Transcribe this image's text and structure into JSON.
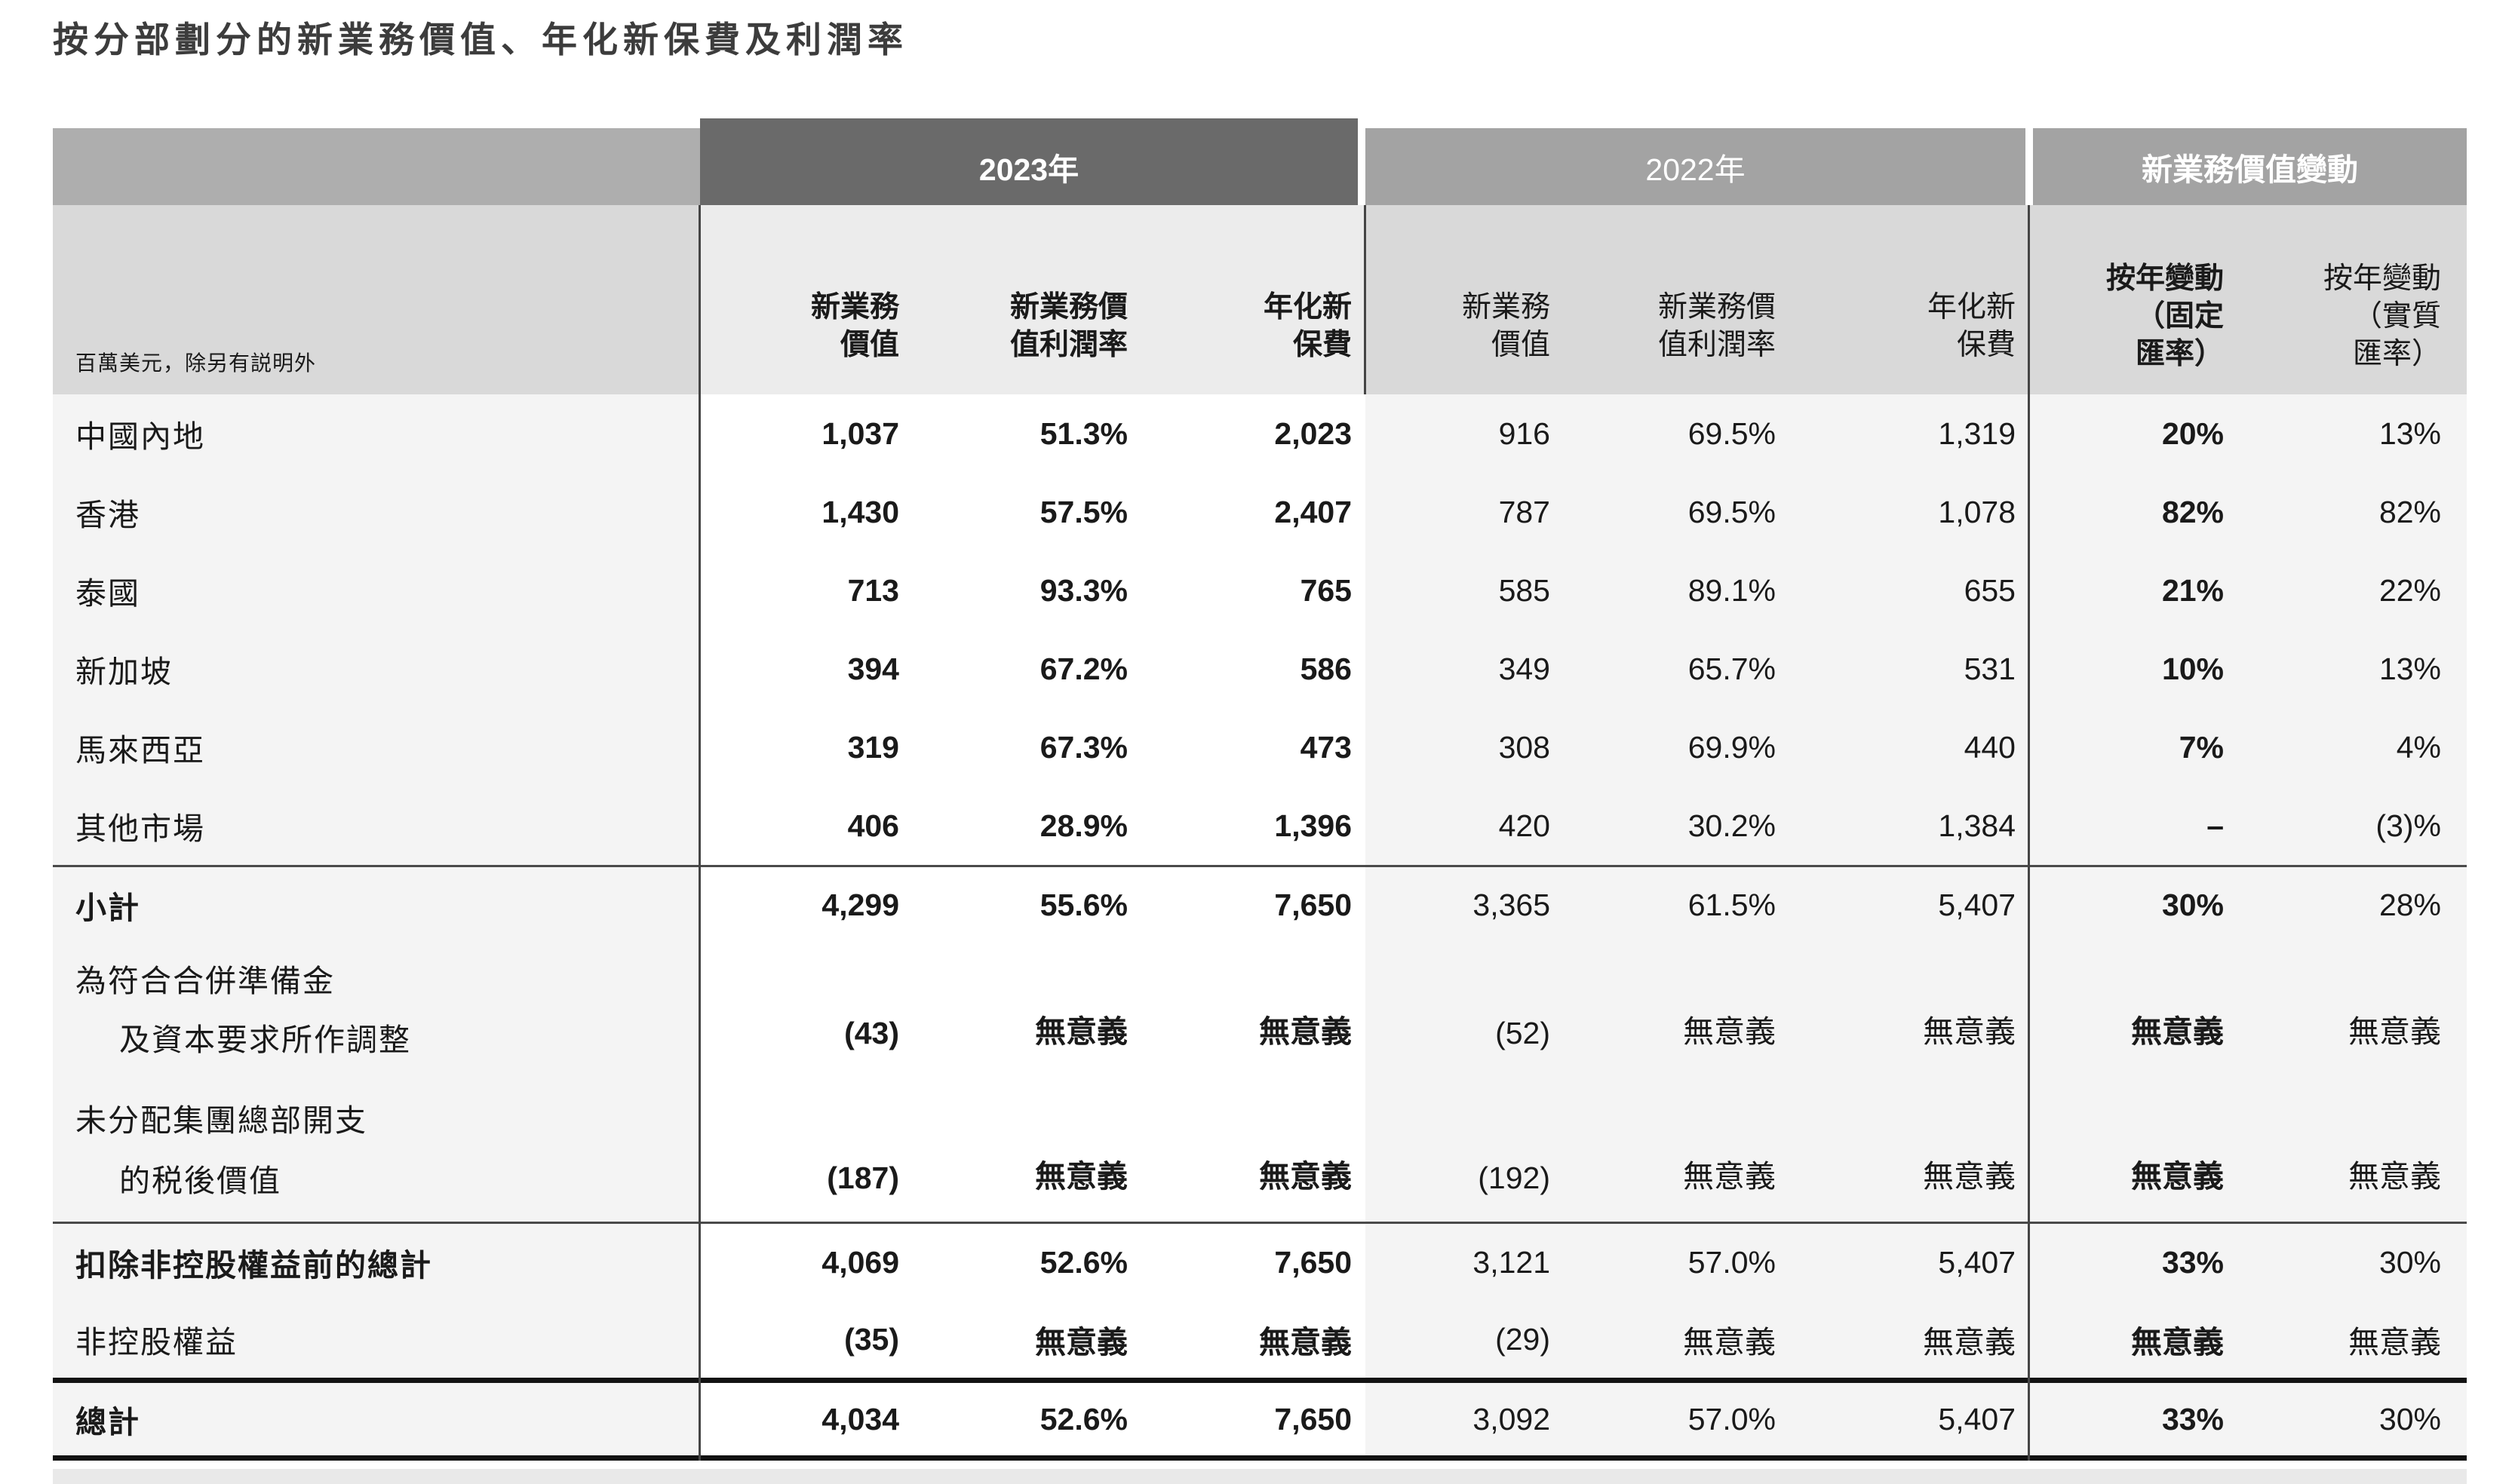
{
  "title": "按分部劃分的新業務價值、年化新保費及利潤率",
  "colors": {
    "header_2023_bg": "#6a6a6a",
    "header_gray_bg": "#a3a3a3",
    "corner_bg": "#aeaeae",
    "subheader_2023_bg": "#ececec",
    "subheader_gray_bg": "#d9d9d9",
    "row_label_bg": "#f4f4f4",
    "row_2023_bg": "#ffffff",
    "row_gray_bg": "#f4f4f4",
    "rule_thin": "#4a4a4a",
    "rule_thick": "#121212",
    "header_text": "#ffffff",
    "body_text": "#1a1a1a",
    "bottom_band": "#e9e9e9"
  },
  "table": {
    "unit_note": "百萬美元，除另有説明外",
    "col_groups": [
      {
        "label": "2023年"
      },
      {
        "label": "2022年"
      },
      {
        "label": "新業務價值變動"
      }
    ],
    "columns": [
      {
        "l1": "新業務",
        "l2": "價值"
      },
      {
        "l1": "新業務價",
        "l2": "值利潤率"
      },
      {
        "l1": "年化新",
        "l2": "保費"
      },
      {
        "l1": "新業務",
        "l2": "價值"
      },
      {
        "l1": "新業務價",
        "l2": "值利潤率"
      },
      {
        "l1": "年化新",
        "l2": "保費"
      },
      {
        "l1": "按年變動",
        "l2": "（固定",
        "l3": "匯率）"
      },
      {
        "l1": "按年變動",
        "l2": "（實質",
        "l3": "匯率）"
      }
    ],
    "rows": [
      {
        "label": "中國內地",
        "values": [
          "1,037",
          "51.3%",
          "2,023",
          "916",
          "69.5%",
          "1,319",
          "20%",
          "13%"
        ]
      },
      {
        "label": "香港",
        "values": [
          "1,430",
          "57.5%",
          "2,407",
          "787",
          "69.5%",
          "1,078",
          "82%",
          "82%"
        ]
      },
      {
        "label": "泰國",
        "values": [
          "713",
          "93.3%",
          "765",
          "585",
          "89.1%",
          "655",
          "21%",
          "22%"
        ]
      },
      {
        "label": "新加坡",
        "values": [
          "394",
          "67.2%",
          "586",
          "349",
          "65.7%",
          "531",
          "10%",
          "13%"
        ]
      },
      {
        "label": "馬來西亞",
        "values": [
          "319",
          "67.3%",
          "473",
          "308",
          "69.9%",
          "440",
          "7%",
          "4%"
        ]
      },
      {
        "label": "其他市場",
        "values": [
          "406",
          "28.9%",
          "1,396",
          "420",
          "30.2%",
          "1,384",
          "–",
          "(3)%"
        ]
      },
      {
        "label": "小計",
        "values": [
          "4,299",
          "55.6%",
          "7,650",
          "3,365",
          "61.5%",
          "5,407",
          "30%",
          "28%"
        ]
      },
      {
        "label": "為符合合併準備金",
        "label2": "及資本要求所作調整",
        "values": [
          "(43)",
          "無意義",
          "無意義",
          "(52)",
          "無意義",
          "無意義",
          "無意義",
          "無意義"
        ]
      },
      {
        "label": "未分配集團總部開支",
        "label2": "的税後價值",
        "values": [
          "(187)",
          "無意義",
          "無意義",
          "(192)",
          "無意義",
          "無意義",
          "無意義",
          "無意義"
        ]
      },
      {
        "label": "扣除非控股權益前的總計",
        "values": [
          "4,069",
          "52.6%",
          "7,650",
          "3,121",
          "57.0%",
          "5,407",
          "33%",
          "30%"
        ]
      },
      {
        "label": "非控股權益",
        "values": [
          "(35)",
          "無意義",
          "無意義",
          "(29)",
          "無意義",
          "無意義",
          "無意義",
          "無意義"
        ]
      },
      {
        "label": "總計",
        "values": [
          "4,034",
          "52.6%",
          "7,650",
          "3,092",
          "57.0%",
          "5,407",
          "33%",
          "30%"
        ]
      }
    ]
  }
}
